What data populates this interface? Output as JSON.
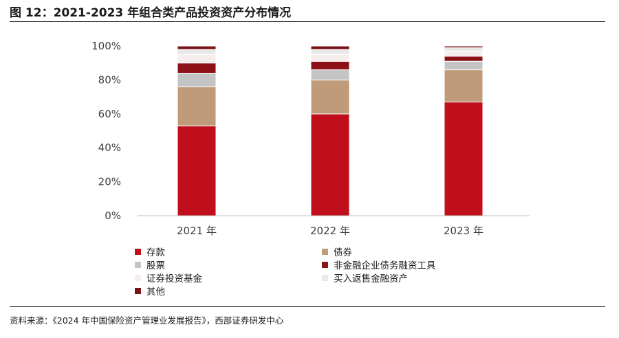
{
  "figure": {
    "title": "图 12：2021-2023 年组合类产品投资资产分布情况",
    "source": "资料来源：《2024 年中国保险资产管理业发展报告》，西部证券研发中心"
  },
  "chart_data": {
    "type": "bar",
    "stacked": true,
    "categories": [
      "2021 年",
      "2022 年",
      "2023 年"
    ],
    "y_ticks": [
      "0%",
      "20%",
      "40%",
      "60%",
      "80%",
      "100%"
    ],
    "ylim": [
      0,
      100
    ],
    "grid": false,
    "legend_position": "bottom",
    "series": [
      {
        "name": "存款",
        "color": "#c00f1b",
        "values": [
          53,
          60,
          67
        ]
      },
      {
        "name": "债券",
        "color": "#bf9b7a",
        "values": [
          23,
          20,
          19
        ]
      },
      {
        "name": "股票",
        "color": "#c4c4c4",
        "values": [
          8,
          6,
          5
        ]
      },
      {
        "name": "非金融企业债务融资工具",
        "color": "#8c1218",
        "values": [
          6,
          5,
          3
        ]
      },
      {
        "name": "证券投资基金",
        "color": "#f6eded",
        "values": [
          5,
          4,
          3
        ]
      },
      {
        "name": "买入返售金融资产",
        "color": "#e9e9e9",
        "values": [
          3,
          3,
          2
        ]
      },
      {
        "name": "其他",
        "color": "#7a1418",
        "values": [
          2,
          2,
          1
        ]
      }
    ]
  }
}
